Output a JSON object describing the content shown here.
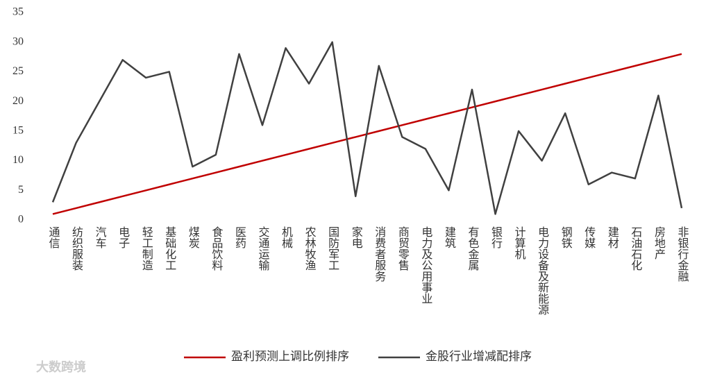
{
  "chart_data": {
    "type": "line",
    "categories": [
      "通信",
      "纺织服装",
      "汽车",
      "电子",
      "轻工制造",
      "基础化工",
      "煤炭",
      "食品饮料",
      "医药",
      "交通运输",
      "机械",
      "农林牧渔",
      "国防军工",
      "家电",
      "消费者服务",
      "商贸零售",
      "电力及公用事业",
      "建筑",
      "有色金属",
      "银行",
      "计算机",
      "电力设备及新能源",
      "钢铁",
      "传媒",
      "建材",
      "石油石化",
      "房地产",
      "非银行金融"
    ],
    "series": [
      {
        "name": "盈利预测上调比例排序",
        "color": "#c00000",
        "values": [
          1,
          2,
          3,
          4,
          5,
          6,
          7,
          8,
          9,
          10,
          11,
          12,
          13,
          14,
          15,
          16,
          17,
          18,
          19,
          20,
          21,
          22,
          23,
          24,
          25,
          26,
          27,
          28
        ]
      },
      {
        "name": "金股行业增减配排序",
        "color": "#404040",
        "values": [
          3,
          13,
          20,
          27,
          24,
          25,
          9,
          11,
          28,
          16,
          29,
          23,
          30,
          4,
          26,
          14,
          12,
          5,
          22,
          1,
          15,
          10,
          18,
          6,
          8,
          7,
          21,
          2
        ]
      }
    ],
    "ylim": [
      0,
      35
    ],
    "yticks": [
      0,
      5,
      10,
      15,
      20,
      25,
      30,
      35
    ],
    "grid": false,
    "watermark": "大数跨境"
  }
}
